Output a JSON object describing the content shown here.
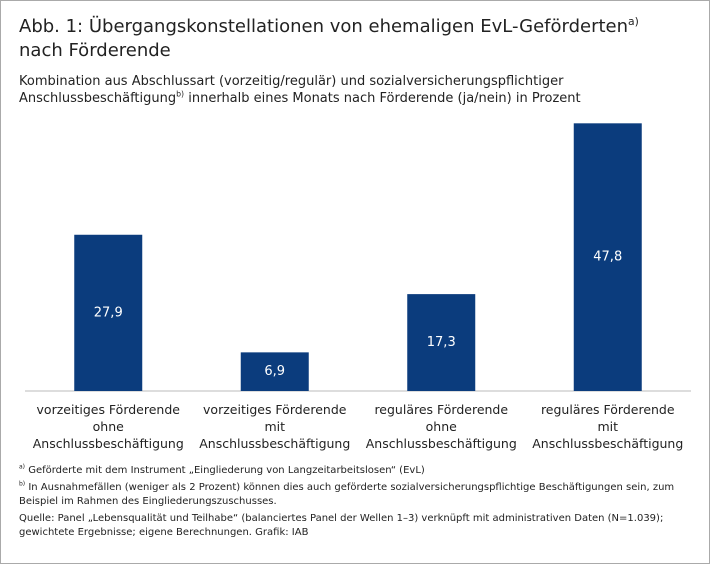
{
  "chart_data": {
    "type": "bar",
    "title": "Abb. 1: Übergangskonstellationen von ehemaligen EvL-Geförderten",
    "title_sup": "a)",
    "title_line2": "nach Förderende",
    "subtitle": "Kombination aus Abschlussart (vorzeitig/regulär) und sozialversicherungspflichtiger Anschlussbeschäftigung",
    "subtitle_sup": "b)",
    "subtitle_rest": " innerhalb eines Monats nach Förderende (ja/nein) in Prozent",
    "categories": [
      "vorzeitiges Förderende\nohne\nAnschlussbeschäftigung",
      "vorzeitiges Förderende\nmit\nAnschlussbeschäftigung",
      "reguläres Förderende\nohne\nAnschlussbeschäftigung",
      "reguläres Förderende\nmit\nAnschlussbeschäftigung"
    ],
    "values": [
      27.9,
      6.9,
      17.3,
      47.8
    ],
    "value_labels": [
      "27,9",
      "6,9",
      "17,3",
      "47,8"
    ],
    "color": "#0b3c7d",
    "ylim": [
      0,
      50
    ],
    "notes": [
      {
        "mark": "a)",
        "text": " Geförderte mit dem Instrument „Eingliederung von Langzeitarbeitslosen“ (EvL)"
      },
      {
        "mark": "b)",
        "text": " In Ausnahmefällen (weniger als 2 Prozent) können dies auch geförderte sozialversicherungspflichtige Beschäftigungen sein, zum Beispiel im Rahmen des Eingliederungszuschusses."
      }
    ],
    "source": "Quelle: Panel „Lebensqualität und Teilhabe“ (balanciertes Panel der Wellen 1–3) verknüpft mit administrativen Daten (N=1.039); gewichtete Ergebnisse; eigene Berechnungen. Grafik: IAB"
  }
}
